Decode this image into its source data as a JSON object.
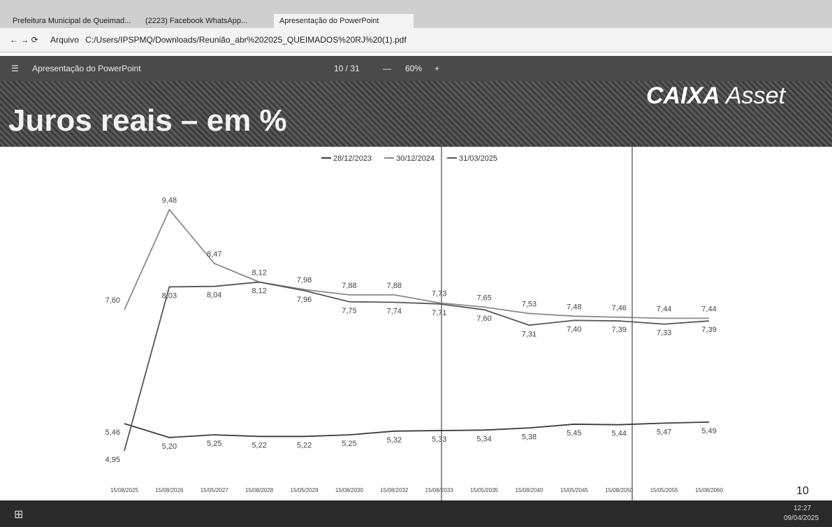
{
  "browser": {
    "tabs": [
      "Prefeitura Municipal de Queimad...",
      "(2223) Facebook WhatsApp...",
      "Apresentação do PowerPoint"
    ],
    "address_prefix": "Arquivo",
    "address": "C:/Users/IPSPMQ/Downloads/Reunião_abr%202025_QUEIMADOS%20RJ%20(1).pdf"
  },
  "pdf_toolbar": {
    "title": "Apresentação do PowerPoint",
    "page": "10 / 31",
    "zoom": "60%"
  },
  "slide": {
    "title": "Juros reais – em %",
    "logo_main": "CAIXA",
    "logo_sub": "Asset",
    "page_number": 10
  },
  "taskbar": {
    "time": "12:27",
    "date": "09/04/2025"
  },
  "chart_data": {
    "type": "line",
    "categories": [
      "15/08/2025",
      "15/08/2026",
      "15/05/2027",
      "15/08/2028",
      "15/05/2029",
      "15/08/2030",
      "15/08/2032",
      "15/08/2033",
      "15/05/2035",
      "15/08/2040",
      "15/05/2045",
      "15/08/2050",
      "15/05/2055",
      "15/08/2060"
    ],
    "series": [
      {
        "name": "28/12/2023",
        "color": "#3a3a3a",
        "values": [
          5.46,
          5.2,
          5.25,
          5.22,
          5.22,
          5.25,
          5.32,
          5.33,
          5.34,
          5.38,
          5.45,
          5.44,
          5.47,
          5.49
        ],
        "value_labels": [
          "5,46",
          "5,20",
          "5,25",
          "5,22",
          "5,22",
          "5,25",
          "5,32",
          "5,33",
          "5,34",
          "5,38",
          "5,45",
          "5,44",
          "5,47",
          "5,49"
        ]
      },
      {
        "name": "30/12/2024",
        "color": "#8a8a8a",
        "values": [
          7.6,
          9.48,
          8.47,
          8.12,
          7.98,
          7.88,
          7.88,
          7.73,
          7.65,
          7.53,
          7.48,
          7.46,
          7.44,
          7.44
        ],
        "value_labels": [
          "7,60",
          "9,48",
          "8,47",
          "8,12",
          "7,98",
          "7,88",
          "7,88",
          "7,73",
          "7,65",
          "7,53",
          "7,48",
          "7,46",
          "7,44",
          "7,44"
        ]
      },
      {
        "name": "31/03/2025",
        "color": "#555555",
        "values": [
          4.95,
          8.03,
          8.04,
          8.12,
          7.96,
          7.75,
          7.74,
          7.71,
          7.6,
          7.31,
          7.4,
          7.39,
          7.33,
          7.39
        ],
        "value_labels": [
          "4,95",
          "8,03",
          "8,04",
          "8,12",
          "7,96",
          "7,75",
          "7,74",
          "7,71",
          "7,60",
          "7,31",
          "7,40",
          "7,39",
          "7,33",
          "7,39"
        ]
      }
    ]
  }
}
